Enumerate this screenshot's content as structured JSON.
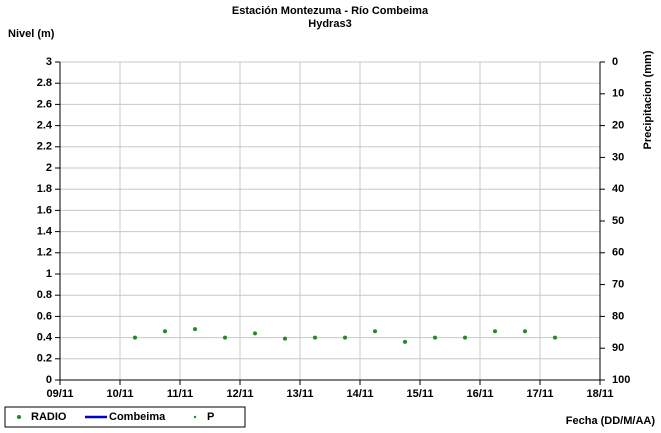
{
  "chart_data": {
    "type": "scatter",
    "title": "Estación Montezuma - Río Combeima",
    "subtitle": "Hydras3",
    "y_label": "Nivel (m)",
    "y2_label": "Precipitacion (mm)",
    "x_label": "Fecha (DD/M/AA)",
    "x": [
      1.25,
      1.75,
      2.25,
      2.75,
      3.25,
      3.75,
      4.25,
      4.75,
      5.25,
      5.75,
      6.25,
      6.75,
      7.25,
      7.75,
      8.25
    ],
    "series": [
      {
        "name": "RADIO",
        "color": "#1e8c1e",
        "values": [
          0.4,
          0.46,
          0.48,
          0.4,
          0.44,
          0.39,
          0.4,
          0.4,
          0.46,
          0.36,
          0.4,
          0.4,
          0.46,
          0.46,
          0.4
        ]
      },
      {
        "name": "Combeima",
        "color": "#0000cc",
        "values": [
          null,
          null,
          null,
          null,
          null,
          null,
          null,
          null,
          null,
          null,
          null,
          null,
          null,
          null,
          null
        ]
      },
      {
        "name": "P",
        "color": "#1e8c1e",
        "axis": "y2",
        "values": [
          null,
          null,
          null,
          null,
          null,
          null,
          null,
          null,
          null,
          null,
          null,
          null,
          null,
          null,
          null
        ]
      }
    ],
    "xlim": [
      0,
      9
    ],
    "xticks": [
      {
        "value": 0,
        "label": "09/11"
      },
      {
        "value": 1,
        "label": "10/11"
      },
      {
        "value": 2,
        "label": "11/11"
      },
      {
        "value": 3,
        "label": "12/11"
      },
      {
        "value": 4,
        "label": "13/11"
      },
      {
        "value": 5,
        "label": "14/11"
      },
      {
        "value": 6,
        "label": "15/11"
      },
      {
        "value": 7,
        "label": "16/11"
      },
      {
        "value": 8,
        "label": "17/11"
      },
      {
        "value": 9,
        "label": "18/11"
      }
    ],
    "ylim": [
      0,
      3
    ],
    "yticks": [
      0,
      0.2,
      0.4,
      0.6,
      0.8,
      1,
      1.2,
      1.4,
      1.6,
      1.8,
      2,
      2.2,
      2.4,
      2.6,
      2.8,
      3
    ],
    "y2lim": [
      0,
      100
    ],
    "y2ticks": [
      0,
      10,
      20,
      30,
      40,
      50,
      60,
      70,
      80,
      90,
      100
    ],
    "y2_inverted": true,
    "grid": true,
    "legend": "bottom-left"
  }
}
